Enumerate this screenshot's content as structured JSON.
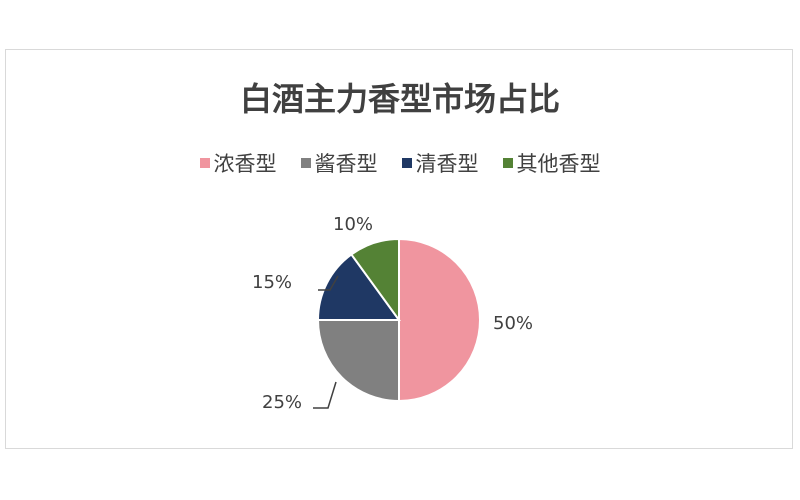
{
  "chart_data": {
    "type": "pie",
    "title": "白酒主力香型市场占比",
    "categories": [
      "浓香型",
      "酱香型",
      "清香型",
      "其他香型"
    ],
    "values": [
      50,
      25,
      15,
      10
    ],
    "data_labels": [
      "50%",
      "25%",
      "15%",
      "10%"
    ],
    "colors": [
      "#F0959F",
      "#808080",
      "#1F3864",
      "#548235"
    ],
    "legend": "top"
  }
}
